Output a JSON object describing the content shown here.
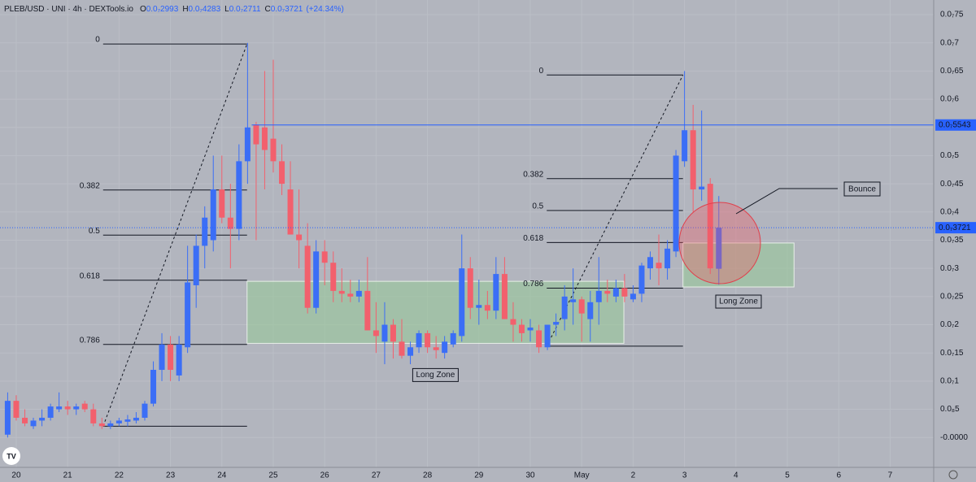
{
  "chart_data": {
    "type": "candlestick",
    "header": {
      "symbol": "PLEB/USD · UNI · 4h · DEXTools.io",
      "ohlc": [
        {
          "label": "O",
          "value": "0.0₇2993"
        },
        {
          "label": "H",
          "value": "0.0₇4283"
        },
        {
          "label": "L",
          "value": "0.0₇2711"
        },
        {
          "label": "C",
          "value": "0.0₇3721"
        }
      ],
      "change": "(+24.34%)"
    },
    "up_color": "#3b6ef6",
    "down_color": "#f2606d",
    "x": [
      19.833,
      20,
      20.167,
      20.333,
      20.5,
      20.667,
      20.833,
      21,
      21.167,
      21.333,
      21.5,
      21.667,
      21.833,
      22,
      22.167,
      22.333,
      22.5,
      22.667,
      22.833,
      23,
      23.167,
      23.333,
      23.5,
      23.667,
      23.833,
      24,
      24.167,
      24.333,
      24.5,
      24.667,
      24.833,
      25,
      25.167,
      25.333,
      25.5,
      25.667,
      25.833,
      26,
      26.167,
      26.333,
      26.5,
      26.667,
      26.833,
      27,
      27.167,
      27.333,
      27.5,
      27.667,
      27.833,
      28,
      28.167,
      28.333,
      28.5,
      28.667,
      28.833,
      29,
      29.167,
      29.333,
      29.5,
      29.667,
      29.833,
      30,
      30.167,
      30.333,
      30.5,
      30.667,
      30.833,
      31,
      31.167,
      31.333,
      31.5,
      31.667,
      31.833,
      32,
      32.167,
      32.333,
      32.5,
      32.667,
      32.833,
      33,
      33.167,
      33.333,
      33.5,
      33.667
    ],
    "open": [
      5e-10,
      6.5e-09,
      3.5e-09,
      2e-09,
      3e-09,
      3.5e-09,
      5e-09,
      5.5e-09,
      5e-09,
      6e-09,
      5e-09,
      2.5e-09,
      2e-09,
      2.5e-09,
      2.8e-09,
      3e-09,
      3.5e-09,
      6e-09,
      1.2e-08,
      1.65e-08,
      1.1e-08,
      1.6e-08,
      2.7e-08,
      3.4e-08,
      3.5e-08,
      4.4e-08,
      3.9e-08,
      3.7e-08,
      4.9e-08,
      5.55e-08,
      5.5e-08,
      5.3e-08,
      4.9e-08,
      4.4e-08,
      3.6e-08,
      3.4e-08,
      2.3e-08,
      3.3e-08,
      3.1e-08,
      2.6e-08,
      2.55e-08,
      2.5e-08,
      2.6e-08,
      1.9e-08,
      1.7e-08,
      2e-08,
      1.7e-08,
      1.45e-08,
      1.6e-08,
      1.85e-08,
      1.6e-08,
      1.5e-08,
      1.65e-08,
      1.8e-08,
      3e-08,
      2.3e-08,
      2.35e-08,
      2.25e-08,
      2.9e-08,
      2.1e-08,
      2e-08,
      1.9e-08,
      1.9e-08,
      1.6e-08,
      2e-08,
      2.1e-08,
      2.4e-08,
      2.45e-08,
      2.1e-08,
      2.4e-08,
      2.6e-08,
      2.5e-08,
      2.65e-08,
      2.45e-08,
      2.55e-08,
      3e-08,
      3.1e-08,
      3e-08,
      3.3e-08,
      4.9e-08,
      5.45e-08,
      4.4e-08,
      4.5e-08,
      2.993e-08
    ],
    "high": [
      8e-09,
      7.5e-09,
      5e-09,
      3.5e-09,
      5e-09,
      6e-09,
      8e-09,
      6.5e-09,
      6e-09,
      6.5e-09,
      6e-09,
      3.5e-09,
      3e-09,
      3.5e-09,
      4e-09,
      4.5e-09,
      6.5e-09,
      1.35e-08,
      1.85e-08,
      1.8e-08,
      1.8e-08,
      3.4e-08,
      3.6e-08,
      4.1e-08,
      5e-08,
      5e-08,
      4.5e-08,
      5.2e-08,
      7e-08,
      5.6e-08,
      6.5e-08,
      6.7e-08,
      5.2e-08,
      4.9e-08,
      4.4e-08,
      3.8e-08,
      3.5e-08,
      3.5e-08,
      3.3e-08,
      3e-08,
      2.8e-08,
      2.8e-08,
      3.2e-08,
      2.4e-08,
      2.4e-08,
      2.1e-08,
      2.1e-08,
      1.7e-08,
      1.9e-08,
      1.9e-08,
      1.8e-08,
      1.8e-08,
      1.9e-08,
      3.6e-08,
      3.2e-08,
      2.8e-08,
      2.6e-08,
      3.2e-08,
      3.2e-08,
      2.4e-08,
      2.1e-08,
      2.1e-08,
      2e-08,
      2e-08,
      2.2e-08,
      2.7e-08,
      3e-08,
      2.5e-08,
      2.6e-08,
      3.2e-08,
      2.8e-08,
      2.8e-08,
      2.9e-08,
      2.7e-08,
      3.1e-08,
      3.3e-08,
      3.6e-08,
      3.5e-08,
      5.1e-08,
      6.5e-08,
      5.9e-08,
      5.8e-08,
      4.6e-08,
      4.283e-08
    ],
    "low": [
      0.0,
      3e-09,
      2e-09,
      1.5e-09,
      2e-09,
      3e-09,
      4.5e-09,
      4e-09,
      4e-09,
      4.5e-09,
      2e-09,
      1.5e-09,
      1.5e-09,
      2e-09,
      2e-09,
      2.5e-09,
      3e-09,
      5.5e-09,
      1e-08,
      1e-08,
      1e-08,
      1.5e-08,
      2.3e-08,
      3e-08,
      3.3e-08,
      3.8e-08,
      3e-08,
      3.5e-08,
      4.5e-08,
      3.5e-08,
      4.4e-08,
      4.7e-08,
      4.3e-08,
      3.6e-08,
      3e-08,
      2.2e-08,
      2.2e-08,
      2.7e-08,
      2.4e-08,
      2.4e-08,
      2.4e-08,
      2.4e-08,
      1.9e-08,
      1.5e-08,
      1.3e-08,
      1.4e-08,
      1.4e-08,
      1.3e-08,
      1.5e-08,
      1.5e-08,
      1.4e-08,
      1.4e-08,
      1.6e-08,
      1.7e-08,
      2.1e-08,
      2e-08,
      2.1e-08,
      2.1e-08,
      2.1e-08,
      1.7e-08,
      1.7e-08,
      1.7e-08,
      1.5e-08,
      1.55e-08,
      1.8e-08,
      1.9e-08,
      2e-08,
      1.7e-08,
      1.7e-08,
      2e-08,
      2.4e-08,
      2.4e-08,
      2.4e-08,
      2.4e-08,
      2.4e-08,
      2.8e-08,
      2.7e-08,
      2.8e-08,
      3.2e-08,
      4.8e-08,
      4e-08,
      4.2e-08,
      2.9e-08,
      2.711e-08
    ],
    "close": [
      6.5e-09,
      3.5e-09,
      2.5e-09,
      3e-09,
      3.5e-09,
      5.5e-09,
      5.5e-09,
      5e-09,
      5.5e-09,
      5e-09,
      2.5e-09,
      2e-09,
      2.5e-09,
      3e-09,
      3.2e-09,
      3.5e-09,
      6e-09,
      1.2e-08,
      1.65e-08,
      1.2e-08,
      1.65e-08,
      2.75e-08,
      3.4e-08,
      3.9e-08,
      4.4e-08,
      3.9e-08,
      3.7e-08,
      4.9e-08,
      5.5e-08,
      5.2e-08,
      5.1e-08,
      4.9e-08,
      4.5e-08,
      3.6e-08,
      3.5e-08,
      2.3e-08,
      3.3e-08,
      3.1e-08,
      2.6e-08,
      2.55e-08,
      2.5e-08,
      2.6e-08,
      1.9e-08,
      1.8e-08,
      2e-08,
      1.7e-08,
      1.45e-08,
      1.6e-08,
      1.85e-08,
      1.6e-08,
      1.55e-08,
      1.7e-08,
      1.85e-08,
      3e-08,
      2.3e-08,
      2.35e-08,
      2.25e-08,
      2.9e-08,
      2.1e-08,
      2e-08,
      1.85e-08,
      1.95e-08,
      1.6e-08,
      2e-08,
      2.05e-08,
      2.5e-08,
      2.45e-08,
      2.2e-08,
      2.4e-08,
      2.6e-08,
      2.55e-08,
      2.65e-08,
      2.5e-08,
      2.55e-08,
      3.05e-08,
      3.2e-08,
      3e-08,
      3.35e-08,
      5e-08,
      5.45e-08,
      4.4e-08,
      4.45e-08,
      3e-08,
      3.721e-08
    ],
    "xlim": [
      19.684,
      37.8
    ],
    "xticks": [
      20,
      21,
      22,
      23,
      24,
      25,
      26,
      27,
      28,
      29,
      30,
      {
        "value": 31,
        "label": "May"
      },
      {
        "value": 32,
        "label": "2"
      },
      {
        "value": 33,
        "label": "3"
      },
      {
        "value": 34,
        "label": "4"
      },
      {
        "value": 35,
        "label": "5"
      },
      {
        "value": 36,
        "label": "6"
      },
      {
        "value": 37,
        "label": "7"
      }
    ],
    "ylim": [
      -5.3e-09,
      7.76e-08
    ],
    "yticks": [
      {
        "value": 0,
        "label": "-0.0000"
      },
      {
        "value": 5e-09,
        "label": "0.0₈5"
      },
      {
        "value": 1e-08,
        "label": "0.0₇1"
      },
      {
        "value": 1.5e-08,
        "label": "0.0₇15"
      },
      {
        "value": 2e-08,
        "label": "0.0₇2"
      },
      {
        "value": 2.5e-08,
        "label": "0.0₇25"
      },
      {
        "value": 3e-08,
        "label": "0.0₇3"
      },
      {
        "value": 3.5e-08,
        "label": "0.0₇35"
      },
      {
        "value": 4e-08,
        "label": "0.0₇4"
      },
      {
        "value": 4.5e-08,
        "label": "0.0₇45"
      },
      {
        "value": 5e-08,
        "label": "0.0₇5"
      },
      {
        "value": 5.5e-08,
        "label": "0.0₇55"
      },
      {
        "value": 6e-08,
        "label": "0.0₇6"
      },
      {
        "value": 6.5e-08,
        "label": "0.0₇65"
      },
      {
        "value": 7e-08,
        "label": "0.0₇7"
      },
      {
        "value": 7.5e-08,
        "label": "0.0₇75"
      }
    ],
    "grid": true,
    "price_lines": [
      {
        "value": 5.543e-08,
        "label": "0.0₇5543",
        "color": "#2962ff",
        "style": "solid",
        "from": 24.58
      },
      {
        "value": 3.721e-08,
        "label": "0.0₇3721",
        "color": "#2962ff",
        "style": "dotted",
        "from": 19.684
      }
    ],
    "fibs": [
      {
        "x": [
          21.69,
          24.49
        ],
        "high": 6.98e-08,
        "low": 2e-09,
        "levels": [
          0,
          0.382,
          0.5,
          0.618,
          0.786
        ]
      },
      {
        "x": [
          30.32,
          32.97
        ],
        "high": 6.43e-08,
        "low": 1.62e-08,
        "levels": [
          0,
          0.382,
          0.5,
          0.618,
          0.786
        ]
      }
    ],
    "zones": [
      {
        "x": [
          24.49,
          31.82
        ],
        "y": [
          1.67e-08,
          2.77e-08
        ],
        "label": "Long Zone"
      },
      {
        "x": [
          32.97,
          35.13
        ],
        "y": [
          2.67e-08,
          3.45e-08
        ],
        "label": "Long Zone"
      }
    ],
    "callout": "Bounce"
  }
}
